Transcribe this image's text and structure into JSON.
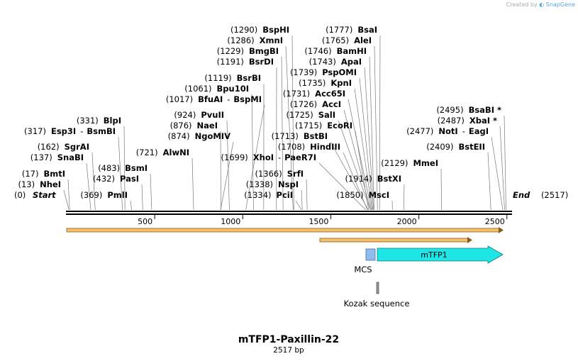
{
  "credit": {
    "prefix": "Created by",
    "brand": "SnapGene"
  },
  "map": {
    "title": "mTFP1-Paxillin-22",
    "length_label": "2517 bp",
    "start": {
      "pos": "(0)",
      "name": "Start"
    },
    "end": {
      "pos": "(2517)",
      "name": "End"
    },
    "ruler": {
      "bp_length": 2517,
      "ticks": [
        {
          "value": 500,
          "label": "500"
        },
        {
          "value": 1000,
          "label": "1000"
        },
        {
          "value": 1500,
          "label": "1500"
        },
        {
          "value": 2000,
          "label": "2000"
        },
        {
          "value": 2500,
          "label": "2500"
        }
      ]
    },
    "sites": [
      {
        "pos": "(13)",
        "bp": 13,
        "name": "NheI"
      },
      {
        "pos": "(17)",
        "bp": 17,
        "name": "BmtI"
      },
      {
        "pos": "(137)",
        "bp": 137,
        "name": "SnaBI"
      },
      {
        "pos": "(162)",
        "bp": 162,
        "name": "SgrAI"
      },
      {
        "pos": "(317)",
        "bp": 317,
        "name": "Esp3I",
        "alt": "BsmBI"
      },
      {
        "pos": "(331)",
        "bp": 331,
        "name": "BlpI"
      },
      {
        "pos": "(369)",
        "bp": 369,
        "name": "PmlI"
      },
      {
        "pos": "(432)",
        "bp": 432,
        "name": "PasI"
      },
      {
        "pos": "(483)",
        "bp": 483,
        "name": "BsmI"
      },
      {
        "pos": "(721)",
        "bp": 721,
        "name": "AlwNI"
      },
      {
        "pos": "(874)",
        "bp": 874,
        "name": "NgoMIV"
      },
      {
        "pos": "(876)",
        "bp": 876,
        "name": "NaeI"
      },
      {
        "pos": "(924)",
        "bp": 924,
        "name": "PvuII"
      },
      {
        "pos": "(1017)",
        "bp": 1017,
        "name": "BfuAI",
        "alt": "BspMI"
      },
      {
        "pos": "(1061)",
        "bp": 1061,
        "name": "Bpu10I"
      },
      {
        "pos": "(1119)",
        "bp": 1119,
        "name": "BsrBI"
      },
      {
        "pos": "(1191)",
        "bp": 1191,
        "name": "BsrDI"
      },
      {
        "pos": "(1229)",
        "bp": 1229,
        "name": "BmgBI"
      },
      {
        "pos": "(1286)",
        "bp": 1286,
        "name": "XmnI"
      },
      {
        "pos": "(1290)",
        "bp": 1290,
        "name": "BspHI"
      },
      {
        "pos": "(1334)",
        "bp": 1334,
        "name": "PciI"
      },
      {
        "pos": "(1338)",
        "bp": 1338,
        "name": "NspI"
      },
      {
        "pos": "(1366)",
        "bp": 1366,
        "name": "SrfI"
      },
      {
        "pos": "(1699)",
        "bp": 1699,
        "name": "XhoI",
        "alt": "PaeR7I"
      },
      {
        "pos": "(1708)",
        "bp": 1708,
        "name": "HindIII"
      },
      {
        "pos": "(1713)",
        "bp": 1713,
        "name": "BstBI"
      },
      {
        "pos": "(1715)",
        "bp": 1715,
        "name": "EcoRI"
      },
      {
        "pos": "(1725)",
        "bp": 1725,
        "name": "SalI"
      },
      {
        "pos": "(1726)",
        "bp": 1726,
        "name": "AccI"
      },
      {
        "pos": "(1731)",
        "bp": 1731,
        "name": "Acc65I"
      },
      {
        "pos": "(1735)",
        "bp": 1735,
        "name": "KpnI"
      },
      {
        "pos": "(1739)",
        "bp": 1739,
        "name": "PspOMI"
      },
      {
        "pos": "(1743)",
        "bp": 1743,
        "name": "ApaI"
      },
      {
        "pos": "(1746)",
        "bp": 1746,
        "name": "BamHI"
      },
      {
        "pos": "(1765)",
        "bp": 1765,
        "name": "AleI"
      },
      {
        "pos": "(1777)",
        "bp": 1777,
        "name": "BsaI"
      },
      {
        "pos": "(1850)",
        "bp": 1850,
        "name": "MscI"
      },
      {
        "pos": "(1914)",
        "bp": 1914,
        "name": "BstXI"
      },
      {
        "pos": "(2129)",
        "bp": 2129,
        "name": "MmeI"
      },
      {
        "pos": "(2409)",
        "bp": 2409,
        "name": "BstEII"
      },
      {
        "pos": "(2477)",
        "bp": 2477,
        "name": "NotI",
        "alt": "EagI"
      },
      {
        "pos": "(2487)",
        "bp": 2487,
        "name": "XbaI *"
      },
      {
        "pos": "(2495)",
        "bp": 2495,
        "name": "BsaBI *"
      }
    ],
    "features": [
      {
        "name": "MCS",
        "color": "#8fbbef",
        "type": "box"
      },
      {
        "name": "mTFP1",
        "color": "#1fe6e6",
        "type": "arrow"
      },
      {
        "name": "Kozak sequence",
        "color": "#999999",
        "type": "tick"
      }
    ],
    "colors": {
      "orf": "#f5c16c",
      "orf_edge": "#8a5a19",
      "backbone": "#000000"
    }
  }
}
